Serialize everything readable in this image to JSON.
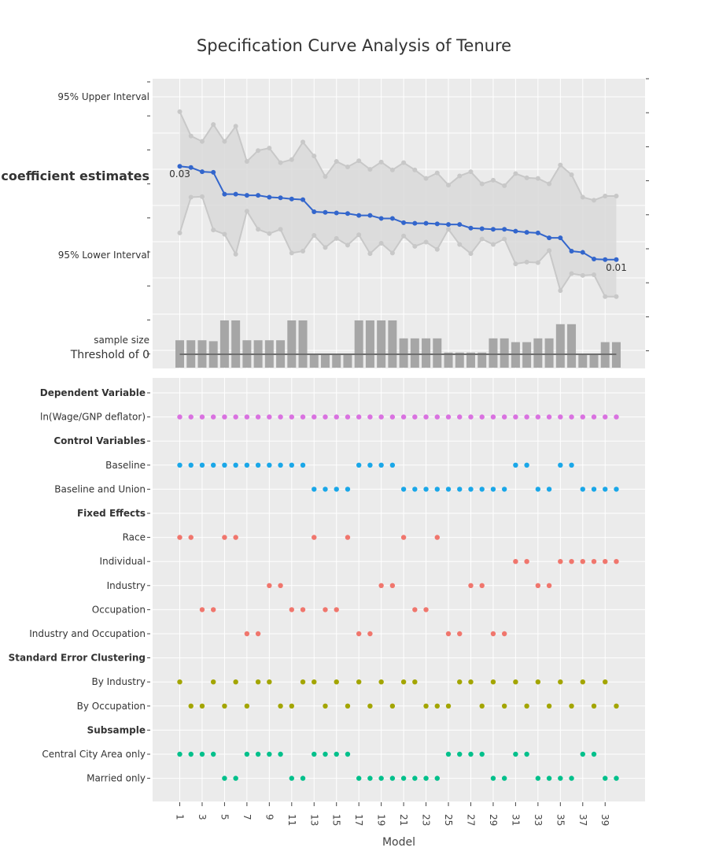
{
  "chart_data": {
    "type": "scatter",
    "title": "Specification Curve Analysis of Tenure",
    "xlabel": "Model",
    "x_ticks": [
      "1",
      "3",
      "5",
      "7",
      "9",
      "11",
      "13",
      "15",
      "17",
      "19",
      "21",
      "23",
      "25",
      "27",
      "29",
      "31",
      "33",
      "35",
      "37",
      "39"
    ],
    "models": 40,
    "top_panel": {
      "labels": {
        "upper": "95% Upper Interval",
        "coef": "coefficient estimates",
        "lower": "95% Lower Interval",
        "sample": "sample size",
        "threshold": "Threshold of 0"
      },
      "coefficient": [
        0.0314,
        0.0312,
        0.0305,
        0.0304,
        0.0268,
        0.0268,
        0.0266,
        0.0266,
        0.0263,
        0.0262,
        0.026,
        0.0259,
        0.0239,
        0.0238,
        0.0237,
        0.0236,
        0.0233,
        0.0233,
        0.0228,
        0.0228,
        0.0221,
        0.022,
        0.022,
        0.0219,
        0.0218,
        0.0218,
        0.0212,
        0.0211,
        0.021,
        0.021,
        0.0207,
        0.0205,
        0.0204,
        0.0196,
        0.0196,
        0.0174,
        0.0172,
        0.0161,
        0.016,
        0.016
      ],
      "upper": [
        0.0404,
        0.0364,
        0.0355,
        0.0383,
        0.0355,
        0.038,
        0.0322,
        0.034,
        0.0344,
        0.032,
        0.0325,
        0.0354,
        0.0331,
        0.0297,
        0.0322,
        0.0313,
        0.0323,
        0.0309,
        0.0321,
        0.0308,
        0.032,
        0.0308,
        0.0294,
        0.0303,
        0.0283,
        0.0298,
        0.0305,
        0.0285,
        0.0291,
        0.0282,
        0.0302,
        0.0295,
        0.0294,
        0.0285,
        0.0316,
        0.03,
        0.0263,
        0.0258,
        0.0265,
        0.0265
      ],
      "lower": [
        0.0204,
        0.0263,
        0.0264,
        0.0209,
        0.0202,
        0.0169,
        0.024,
        0.021,
        0.0203,
        0.021,
        0.0171,
        0.0174,
        0.02,
        0.018,
        0.0195,
        0.0184,
        0.0201,
        0.017,
        0.0187,
        0.0171,
        0.0199,
        0.0182,
        0.0189,
        0.0177,
        0.021,
        0.0185,
        0.017,
        0.0194,
        0.0185,
        0.0194,
        0.0153,
        0.0156,
        0.0155,
        0.0175,
        0.0109,
        0.0137,
        0.0134,
        0.0135,
        0.0099,
        0.0099
      ],
      "sample_size": [
        0.58,
        0.58,
        0.58,
        0.56,
        1.0,
        1.0,
        0.58,
        0.58,
        0.58,
        0.58,
        1.0,
        1.0,
        0.3,
        0.3,
        0.3,
        0.3,
        1.0,
        1.0,
        1.0,
        1.0,
        0.62,
        0.62,
        0.62,
        0.62,
        0.32,
        0.32,
        0.32,
        0.32,
        0.62,
        0.62,
        0.54,
        0.54,
        0.62,
        0.62,
        0.92,
        0.92,
        0.3,
        0.3,
        0.54,
        0.54
      ],
      "annotations": [
        {
          "model": 1,
          "text": "0.03"
        },
        {
          "model": 40,
          "text": "0.01"
        }
      ]
    },
    "bottom_panel": {
      "rows": [
        {
          "label": "Dependent Variable",
          "header": true,
          "models": []
        },
        {
          "label": "ln(Wage/GNP deflator)",
          "header": false,
          "color": "#d972e0",
          "models": [
            1,
            2,
            3,
            4,
            5,
            6,
            7,
            8,
            9,
            10,
            11,
            12,
            13,
            14,
            15,
            16,
            17,
            18,
            19,
            20,
            21,
            22,
            23,
            24,
            25,
            26,
            27,
            28,
            29,
            30,
            31,
            32,
            33,
            34,
            35,
            36,
            37,
            38,
            39,
            40
          ]
        },
        {
          "label": "Control Variables",
          "header": true,
          "models": []
        },
        {
          "label": "Baseline",
          "header": false,
          "color": "#1aa7e8",
          "models": [
            1,
            2,
            3,
            4,
            5,
            6,
            7,
            8,
            9,
            10,
            11,
            12,
            17,
            18,
            19,
            20,
            31,
            32,
            35,
            36
          ]
        },
        {
          "label": "Baseline and Union",
          "header": false,
          "color": "#1aa7e8",
          "models": [
            13,
            14,
            15,
            16,
            21,
            22,
            23,
            24,
            25,
            26,
            27,
            28,
            29,
            30,
            33,
            34,
            37,
            38,
            39,
            40
          ]
        },
        {
          "label": "Fixed Effects",
          "header": true,
          "models": []
        },
        {
          "label": "Race",
          "header": false,
          "color": "#f0766d",
          "models": [
            1,
            2,
            5,
            6,
            13,
            16,
            21,
            24
          ]
        },
        {
          "label": "Individual",
          "header": false,
          "color": "#f0766d",
          "models": [
            31,
            32,
            35,
            36,
            37,
            38,
            39,
            40
          ]
        },
        {
          "label": "Industry",
          "header": false,
          "color": "#f0766d",
          "models": [
            9,
            10,
            19,
            20,
            27,
            28,
            33,
            34
          ]
        },
        {
          "label": "Occupation",
          "header": false,
          "color": "#f0766d",
          "models": [
            3,
            4,
            11,
            12,
            14,
            15,
            22,
            23
          ]
        },
        {
          "label": "Industry and Occupation",
          "header": false,
          "color": "#f0766d",
          "models": [
            7,
            8,
            17,
            18,
            25,
            26,
            29,
            30
          ]
        },
        {
          "label": "Standard Error Clustering",
          "header": true,
          "models": []
        },
        {
          "label": "By Industry",
          "header": false,
          "color": "#a3a500",
          "models": [
            1,
            4,
            6,
            8,
            9,
            12,
            13,
            15,
            17,
            19,
            21,
            22,
            26,
            27,
            29,
            31,
            33,
            35,
            37,
            39
          ]
        },
        {
          "label": "By Occupation",
          "header": false,
          "color": "#a3a500",
          "models": [
            2,
            3,
            5,
            7,
            10,
            11,
            14,
            16,
            18,
            20,
            23,
            24,
            25,
            28,
            30,
            32,
            34,
            36,
            38,
            40
          ]
        },
        {
          "label": "Subsample",
          "header": true,
          "models": []
        },
        {
          "label": "Central City Area only",
          "header": false,
          "color": "#00c08b",
          "models": [
            1,
            2,
            3,
            4,
            7,
            8,
            9,
            10,
            13,
            14,
            15,
            16,
            25,
            26,
            27,
            28,
            31,
            32,
            37,
            38
          ]
        },
        {
          "label": "Married only",
          "header": false,
          "color": "#00c08b",
          "models": [
            5,
            6,
            11,
            12,
            17,
            18,
            19,
            20,
            21,
            22,
            23,
            24,
            29,
            30,
            33,
            34,
            35,
            36,
            39,
            40
          ]
        }
      ]
    },
    "colors": {
      "coefficient_line": "#3366cc",
      "interval": "#c8c8c8",
      "band_fill": "#d9d9d9",
      "sample_bars": "#a6a6a6",
      "threshold_line": "#6e6e6e",
      "panel_bg": "#ebebeb"
    }
  }
}
